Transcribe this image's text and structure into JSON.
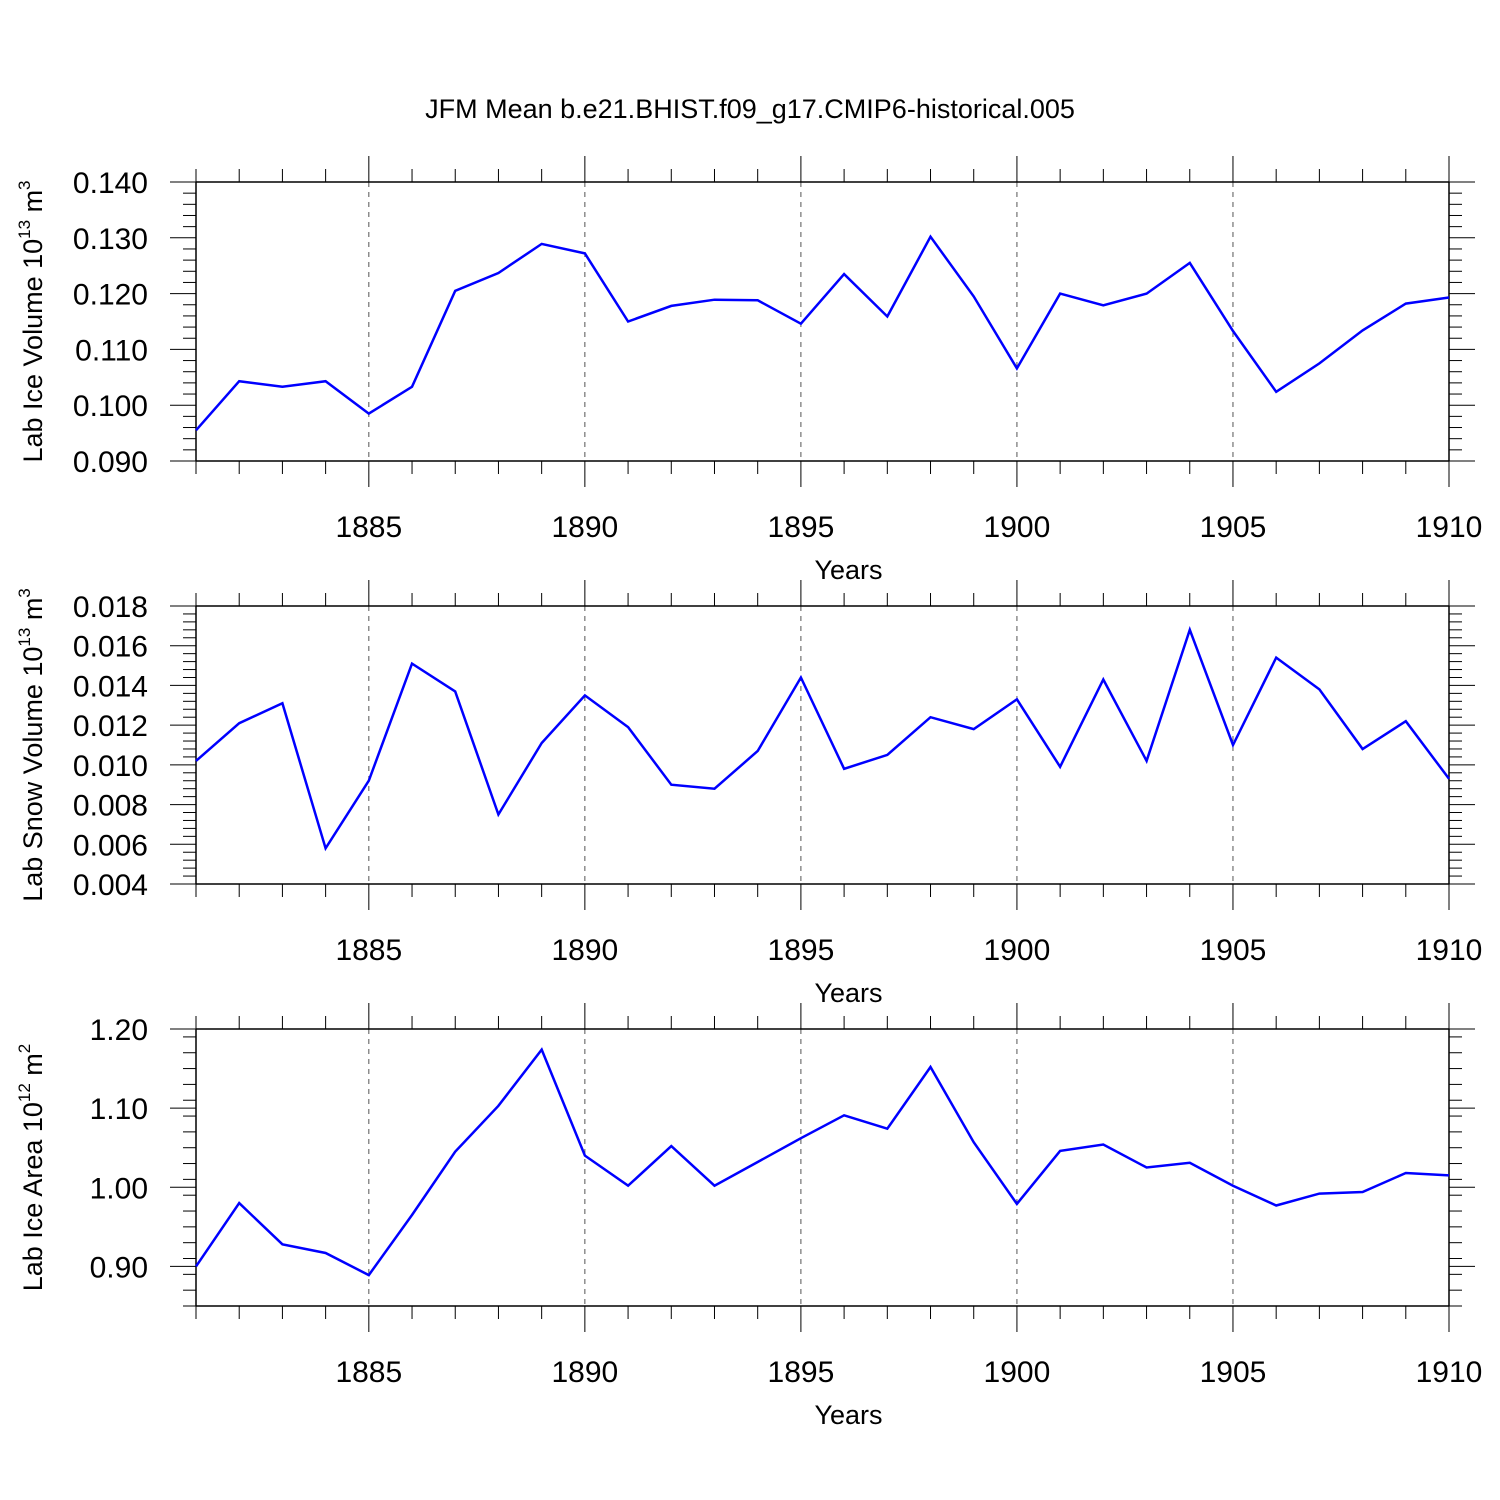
{
  "title": "JFM Mean b.e21.BHIST.f09_g17.CMIP6-historical.005",
  "colors": {
    "line": "#0000ff",
    "axis": "#000000",
    "grid": "#555555",
    "background": "#ffffff"
  },
  "chart_data": [
    {
      "type": "line",
      "ylabel_main": "Lab Ice Volume 10",
      "ylabel_exp": "13",
      "ylabel_unit": " m",
      "ylabel_unit_exp": "3",
      "xlabel": "Years",
      "x": [
        1881,
        1882,
        1883,
        1884,
        1885,
        1886,
        1887,
        1888,
        1889,
        1890,
        1891,
        1892,
        1893,
        1894,
        1895,
        1896,
        1897,
        1898,
        1899,
        1900,
        1901,
        1902,
        1903,
        1904,
        1905,
        1906,
        1907,
        1908,
        1909,
        1910
      ],
      "series": [
        {
          "name": "Lab Ice Volume",
          "values": [
            0.0955,
            0.1043,
            0.1033,
            0.1043,
            0.0985,
            0.1033,
            0.1205,
            0.1237,
            0.1289,
            0.1272,
            0.115,
            0.1178,
            0.1189,
            0.1188,
            0.1146,
            0.1235,
            0.1159,
            0.1302,
            0.1195,
            0.1066,
            0.12,
            0.1179,
            0.12,
            0.1255,
            0.1133,
            0.1024,
            0.1075,
            0.1134,
            0.1182,
            0.1193
          ]
        }
      ],
      "xlim": [
        1881,
        1910
      ],
      "ylim": [
        0.09,
        0.14
      ],
      "xticks": [
        "1885",
        "1890",
        "1895",
        "1900",
        "1905",
        "1910"
      ],
      "yticks": [
        "0.090",
        "0.100",
        "0.110",
        "0.120",
        "0.130",
        "0.140"
      ],
      "grid": "vertical dashed at x tick years"
    },
    {
      "type": "line",
      "ylabel_main": "Lab Snow Volume 10",
      "ylabel_exp": "13",
      "ylabel_unit": " m",
      "ylabel_unit_exp": "3",
      "xlabel": "Years",
      "x": [
        1881,
        1882,
        1883,
        1884,
        1885,
        1886,
        1887,
        1888,
        1889,
        1890,
        1891,
        1892,
        1893,
        1894,
        1895,
        1896,
        1897,
        1898,
        1899,
        1900,
        1901,
        1902,
        1903,
        1904,
        1905,
        1906,
        1907,
        1908,
        1909,
        1910
      ],
      "series": [
        {
          "name": "Lab Snow Volume",
          "values": [
            0.0102,
            0.0121,
            0.0131,
            0.0058,
            0.0092,
            0.0151,
            0.0137,
            0.0075,
            0.0111,
            0.0135,
            0.0119,
            0.009,
            0.0088,
            0.0107,
            0.0144,
            0.0098,
            0.0105,
            0.0124,
            0.0118,
            0.0133,
            0.0099,
            0.0143,
            0.0102,
            0.0168,
            0.011,
            0.0154,
            0.0138,
            0.0108,
            0.0122,
            0.0093
          ]
        }
      ],
      "xlim": [
        1881,
        1910
      ],
      "ylim": [
        0.004,
        0.018
      ],
      "xticks": [
        "1885",
        "1890",
        "1895",
        "1900",
        "1905",
        "1910"
      ],
      "yticks": [
        "0.004",
        "0.006",
        "0.008",
        "0.010",
        "0.012",
        "0.014",
        "0.016",
        "0.018"
      ],
      "grid": "vertical dashed at x tick years"
    },
    {
      "type": "line",
      "ylabel_main": "Lab Ice Area 10",
      "ylabel_exp": "12",
      "ylabel_unit": " m",
      "ylabel_unit_exp": "2",
      "xlabel": "Years",
      "x": [
        1881,
        1882,
        1883,
        1884,
        1885,
        1886,
        1887,
        1888,
        1889,
        1890,
        1891,
        1892,
        1893,
        1894,
        1895,
        1896,
        1897,
        1898,
        1899,
        1900,
        1901,
        1902,
        1903,
        1904,
        1905,
        1906,
        1907,
        1908,
        1909,
        1910
      ],
      "series": [
        {
          "name": "Lab Ice Area",
          "values": [
            0.9,
            0.98,
            0.928,
            0.917,
            0.889,
            0.965,
            1.045,
            1.103,
            1.174,
            1.04,
            1.002,
            1.052,
            1.002,
            1.032,
            1.062,
            1.091,
            1.074,
            1.152,
            1.057,
            0.979,
            1.046,
            1.054,
            1.025,
            1.031,
            1.002,
            0.977,
            0.992,
            0.994,
            1.018,
            1.015
          ]
        }
      ],
      "xlim": [
        1881,
        1910
      ],
      "ylim": [
        0.85,
        1.2
      ],
      "xticks": [
        "1885",
        "1890",
        "1895",
        "1900",
        "1905",
        "1910"
      ],
      "yticks": [
        "0.90",
        "1.00",
        "1.10",
        "1.20"
      ],
      "grid": "vertical dashed at x tick years"
    }
  ]
}
